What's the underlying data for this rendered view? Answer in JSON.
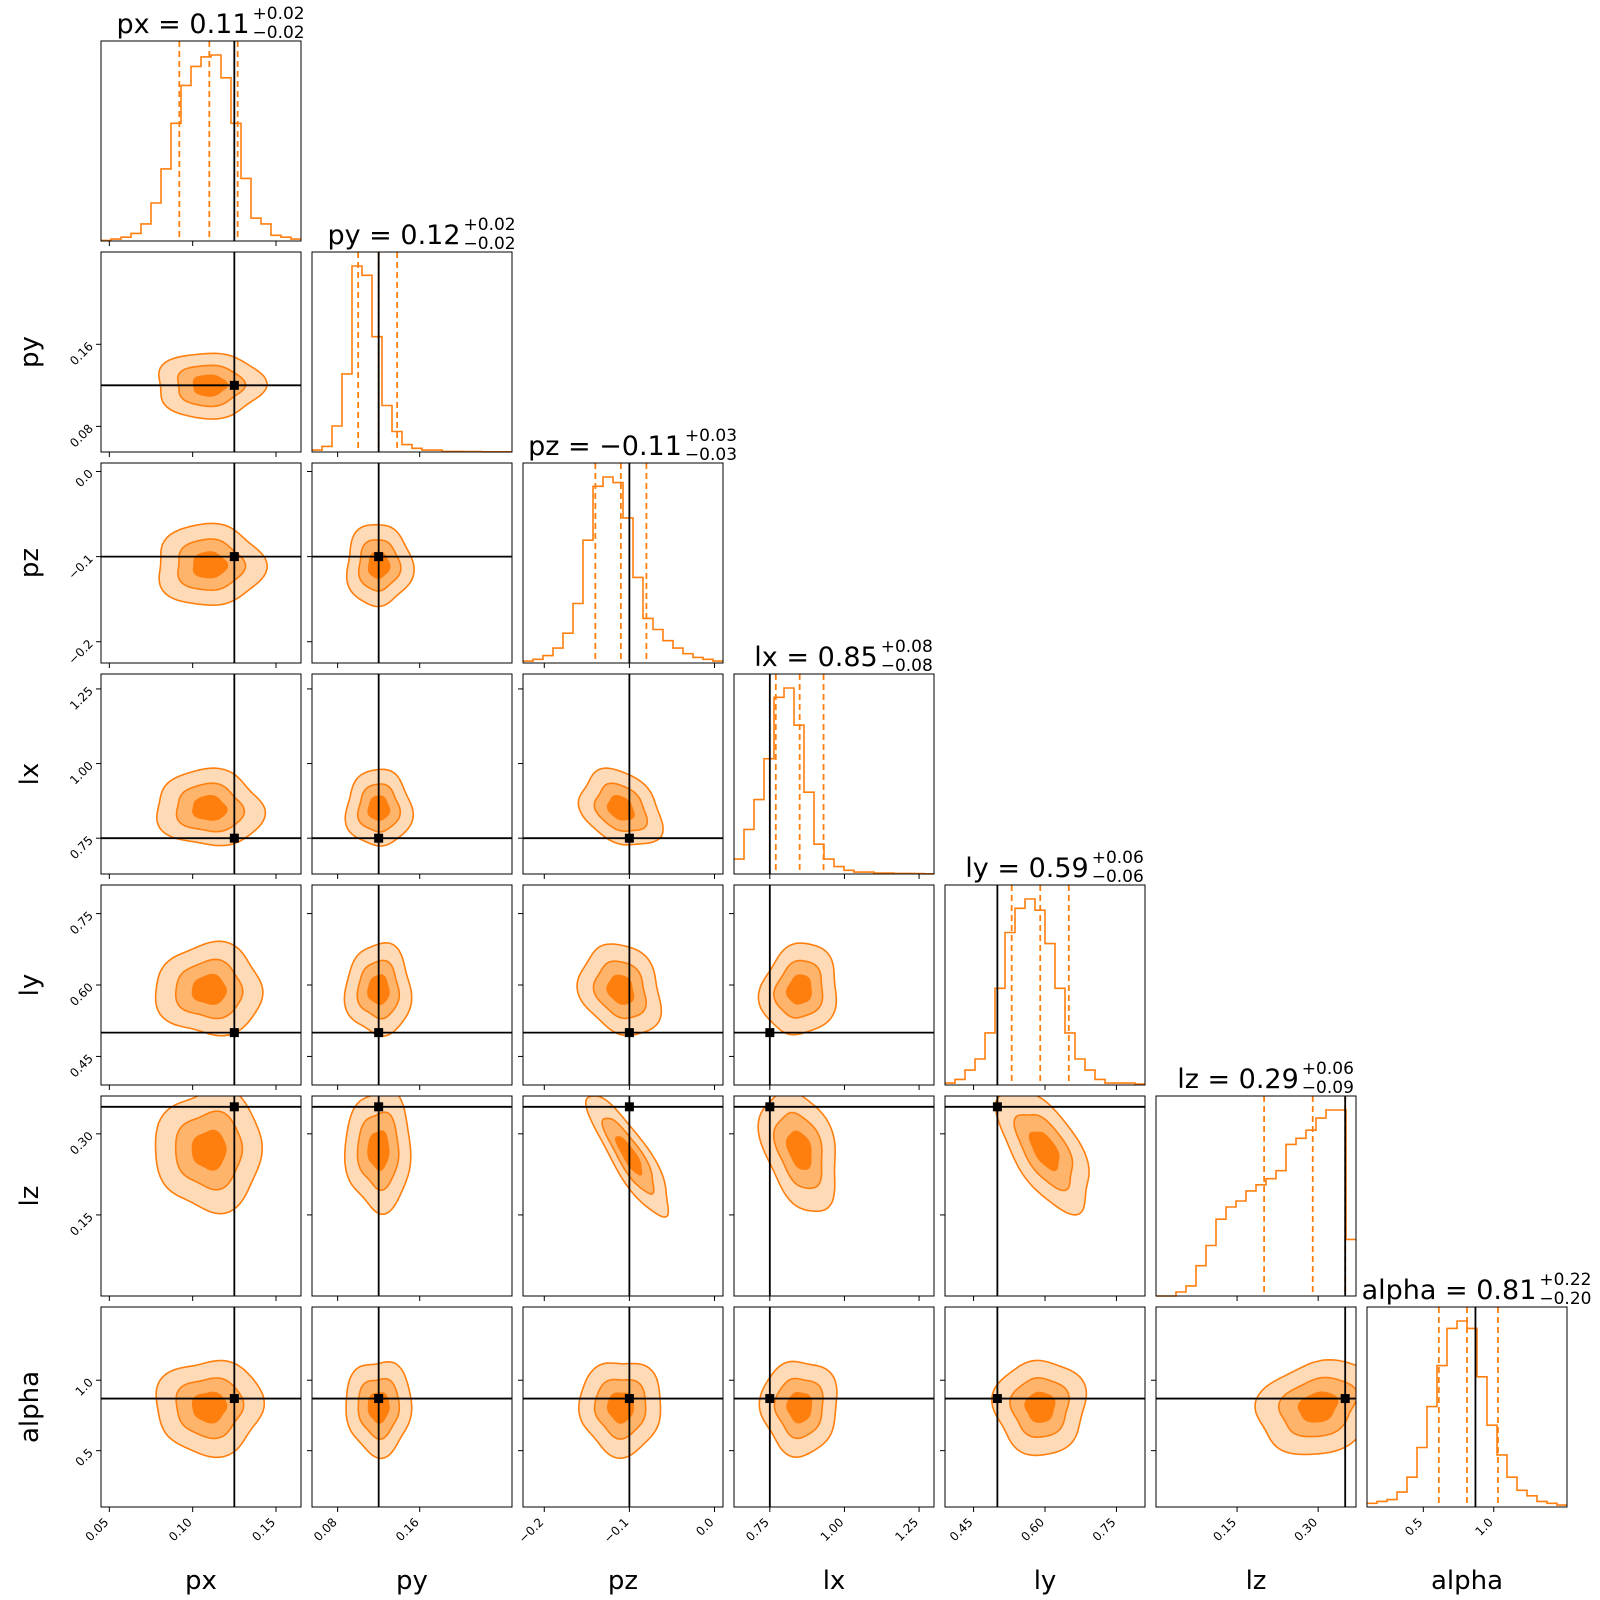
{
  "chart_data": {
    "type": "corner",
    "parameters": [
      "px",
      "py",
      "pz",
      "lx",
      "ly",
      "lz",
      "alpha"
    ],
    "axis_labels": [
      "px",
      "py",
      "pz",
      "lx",
      "ly",
      "lz",
      "alpha"
    ],
    "titles": [
      {
        "param": "px",
        "name": "px",
        "median": "0.11",
        "plus": "+0.02",
        "minus": "−0.02"
      },
      {
        "param": "py",
        "name": "py",
        "median": "0.12",
        "plus": "+0.02",
        "minus": "−0.02"
      },
      {
        "param": "pz",
        "name": "pz",
        "median": "−0.11",
        "plus": "+0.03",
        "minus": "−0.03"
      },
      {
        "param": "lx",
        "name": "lx",
        "median": "0.85",
        "plus": "+0.08",
        "minus": "−0.08"
      },
      {
        "param": "ly",
        "name": "ly",
        "median": "0.59",
        "plus": "+0.06",
        "minus": "−0.06"
      },
      {
        "param": "lz",
        "name": "lz",
        "median": "0.29",
        "plus": "+0.06",
        "minus": "−0.09"
      },
      {
        "param": "alpha",
        "name": "alpha",
        "median": "0.81",
        "plus": "+0.22",
        "minus": "−0.20"
      }
    ],
    "ranges": [
      [
        0.045,
        0.165
      ],
      [
        0.055,
        0.25
      ],
      [
        -0.225,
        0.01
      ],
      [
        0.63,
        1.3
      ],
      [
        0.39,
        0.81
      ],
      [
        0.0,
        0.37
      ],
      [
        0.1,
        1.52
      ]
    ],
    "ticks": [
      {
        "values": [
          0.05,
          0.1,
          0.15
        ],
        "labels": [
          "0.05",
          "0.10",
          "0.15"
        ]
      },
      {
        "values": [
          0.08,
          0.16
        ],
        "labels": [
          "0.08",
          "0.16"
        ]
      },
      {
        "values": [
          -0.2,
          -0.1,
          0.0
        ],
        "labels": [
          "−0.2",
          "−0.1",
          "0.0"
        ]
      },
      {
        "values": [
          0.75,
          1.0,
          1.25
        ],
        "labels": [
          "0.75",
          "1.00",
          "1.25"
        ]
      },
      {
        "values": [
          0.45,
          0.6,
          0.75
        ],
        "labels": [
          "0.45",
          "0.60",
          "0.75"
        ]
      },
      {
        "values": [
          0.15,
          0.3
        ],
        "labels": [
          "0.15",
          "0.30"
        ]
      },
      {
        "values": [
          0.5,
          1.0
        ],
        "labels": [
          "0.5",
          "1.0"
        ]
      }
    ],
    "truths": [
      0.125,
      0.12,
      -0.1,
      0.75,
      0.5,
      0.35,
      0.87
    ],
    "quantiles": [
      [
        0.092,
        0.11,
        0.127
      ],
      [
        0.1,
        0.12,
        0.138
      ],
      [
        -0.14,
        -0.11,
        -0.08
      ],
      [
        0.77,
        0.85,
        0.93
      ],
      [
        0.53,
        0.59,
        0.65
      ],
      [
        0.2,
        0.29,
        0.35
      ],
      [
        0.61,
        0.81,
        1.03
      ]
    ],
    "histograms": [
      [
        0.3,
        1,
        2,
        4,
        9,
        20,
        38,
        62,
        82,
        92,
        97,
        98,
        86,
        62,
        33,
        12,
        9,
        3,
        2,
        1
      ],
      [
        1,
        3,
        14,
        42,
        100,
        95,
        62,
        25,
        11,
        4,
        2,
        1,
        1,
        0.3,
        0.3,
        0.2,
        0.2,
        0.1,
        0.1,
        0.1
      ],
      [
        1,
        2,
        4,
        8,
        16,
        32,
        66,
        95,
        100,
        97,
        78,
        46,
        24,
        18,
        12,
        8,
        5,
        3,
        2,
        1
      ],
      [
        8,
        24,
        40,
        62,
        95,
        100,
        80,
        44,
        16,
        8,
        4,
        2,
        1,
        1,
        0.5,
        0.5,
        0.3,
        0.3,
        0.2,
        0.1
      ],
      [
        1,
        3,
        8,
        14,
        28,
        52,
        82,
        95,
        100,
        94,
        76,
        52,
        28,
        14,
        8,
        3,
        1,
        1,
        1,
        0.5
      ],
      [
        0,
        0,
        2,
        5,
        15,
        25,
        38,
        44,
        47,
        52,
        55,
        58,
        62,
        75,
        78,
        82,
        88,
        92,
        92,
        28
      ],
      [
        2,
        3,
        4,
        8,
        16,
        32,
        54,
        76,
        96,
        100,
        96,
        70,
        44,
        28,
        16,
        9,
        6,
        3,
        2,
        1
      ]
    ],
    "joint_contours": [
      {
        "row": "py",
        "col": "px",
        "center": [
          0.11,
          0.12
        ],
        "sigma": [
          0.02,
          0.02
        ],
        "rho": 0.0
      },
      {
        "row": "pz",
        "col": "px",
        "center": [
          0.11,
          -0.11
        ],
        "sigma": [
          0.02,
          0.03
        ],
        "rho": 0.0
      },
      {
        "row": "pz",
        "col": "py",
        "center": [
          0.12,
          -0.11
        ],
        "sigma": [
          0.02,
          0.03
        ],
        "rho": 0.0
      },
      {
        "row": "lx",
        "col": "px",
        "center": [
          0.11,
          0.85
        ],
        "sigma": [
          0.02,
          0.08
        ],
        "rho": -0.05
      },
      {
        "row": "lx",
        "col": "py",
        "center": [
          0.12,
          0.85
        ],
        "sigma": [
          0.02,
          0.08
        ],
        "rho": 0.0
      },
      {
        "row": "lx",
        "col": "pz",
        "center": [
          -0.11,
          0.85
        ],
        "sigma": [
          0.03,
          0.08
        ],
        "rho": -0.3
      },
      {
        "row": "ly",
        "col": "px",
        "center": [
          0.11,
          0.59
        ],
        "sigma": [
          0.02,
          0.06
        ],
        "rho": 0.0
      },
      {
        "row": "ly",
        "col": "py",
        "center": [
          0.12,
          0.59
        ],
        "sigma": [
          0.02,
          0.06
        ],
        "rho": 0.0
      },
      {
        "row": "ly",
        "col": "pz",
        "center": [
          -0.11,
          0.59
        ],
        "sigma": [
          0.03,
          0.06
        ],
        "rho": -0.2
      },
      {
        "row": "ly",
        "col": "lx",
        "center": [
          0.85,
          0.59
        ],
        "sigma": [
          0.08,
          0.06
        ],
        "rho": 0.1
      },
      {
        "row": "lz",
        "col": "px",
        "center": [
          0.11,
          0.27
        ],
        "sigma": [
          0.02,
          0.07
        ],
        "rho": 0.0
      },
      {
        "row": "lz",
        "col": "py",
        "center": [
          0.12,
          0.27
        ],
        "sigma": [
          0.02,
          0.07
        ],
        "rho": 0.0
      },
      {
        "row": "lz",
        "col": "pz",
        "center": [
          -0.1,
          0.26
        ],
        "sigma": [
          0.03,
          0.07
        ],
        "rho": -0.85
      },
      {
        "row": "lz",
        "col": "lx",
        "center": [
          0.85,
          0.27
        ],
        "sigma": [
          0.08,
          0.07
        ],
        "rho": -0.35
      },
      {
        "row": "lz",
        "col": "ly",
        "center": [
          0.6,
          0.27
        ],
        "sigma": [
          0.06,
          0.07
        ],
        "rho": -0.6
      },
      {
        "row": "alpha",
        "col": "px",
        "center": [
          0.11,
          0.81
        ],
        "sigma": [
          0.02,
          0.21
        ],
        "rho": 0.0
      },
      {
        "row": "alpha",
        "col": "py",
        "center": [
          0.12,
          0.81
        ],
        "sigma": [
          0.02,
          0.21
        ],
        "rho": 0.0
      },
      {
        "row": "alpha",
        "col": "pz",
        "center": [
          -0.11,
          0.81
        ],
        "sigma": [
          0.03,
          0.21
        ],
        "rho": 0.0
      },
      {
        "row": "alpha",
        "col": "lx",
        "center": [
          0.85,
          0.81
        ],
        "sigma": [
          0.08,
          0.21
        ],
        "rho": 0.0
      },
      {
        "row": "alpha",
        "col": "ly",
        "center": [
          0.59,
          0.81
        ],
        "sigma": [
          0.06,
          0.21
        ],
        "rho": 0.0
      },
      {
        "row": "alpha",
        "col": "lz",
        "center": [
          0.3,
          0.81
        ],
        "sigma": [
          0.07,
          0.21
        ],
        "rho": 0.2
      }
    ],
    "contour_sigma_levels": [
      0.5,
      1.0,
      1.6
    ],
    "colors": {
      "histogram": "#ff7f0e",
      "quantile_line": "#ff7f0e",
      "contour_line": "#ff7f0e",
      "fill_outer": "#ffdab6",
      "fill_middle": "#ffb46c",
      "fill_inner": "#ff7f0e",
      "truth": "#000000"
    },
    "grid": false,
    "legend": "none"
  }
}
